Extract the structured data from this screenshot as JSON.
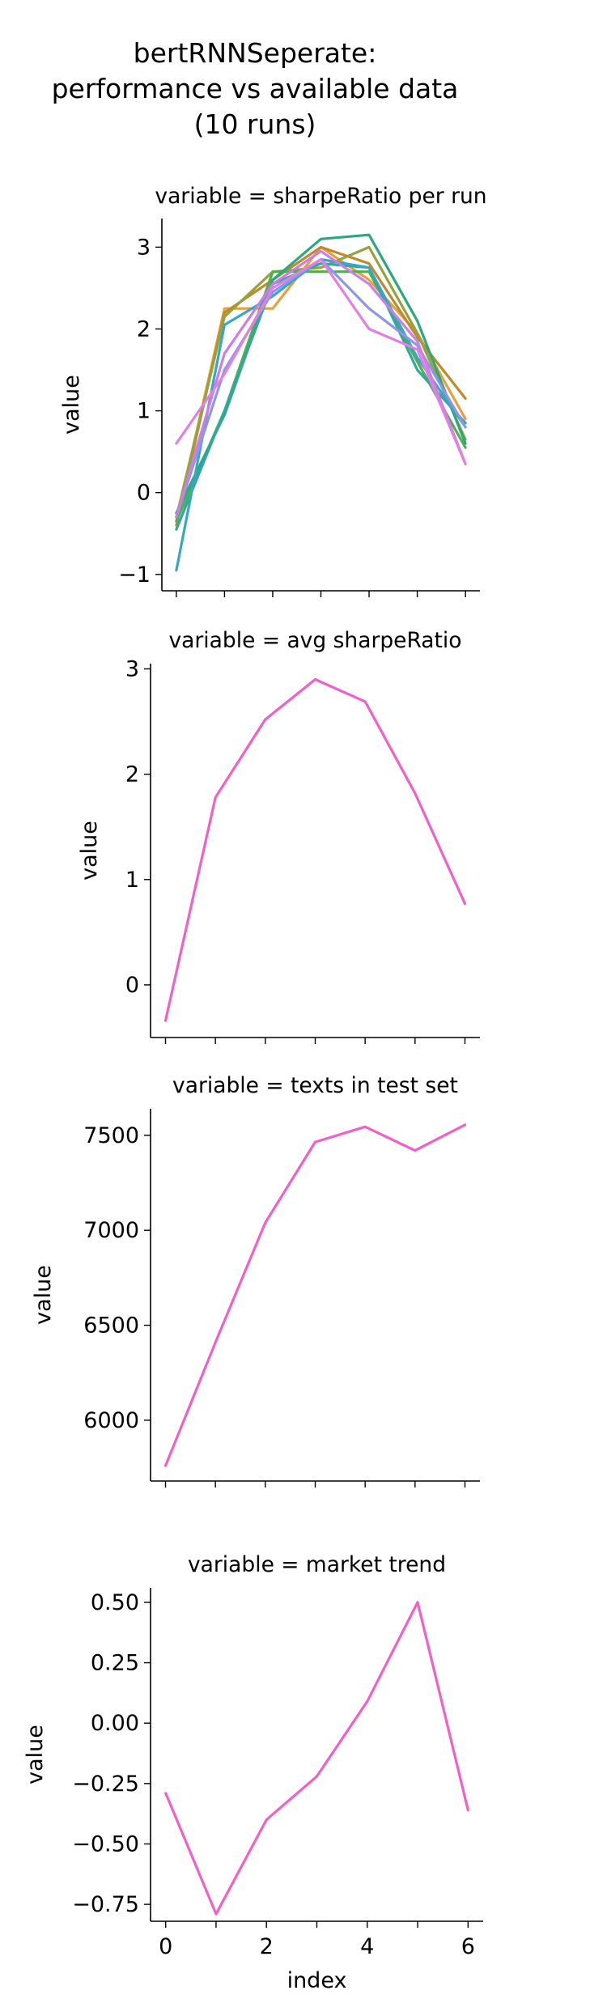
{
  "figure_title": [
    "bertRNNSeperate:",
    "performance vs available data",
    "(10 runs)"
  ],
  "chart_data": [
    {
      "type": "line",
      "title": "variable = sharpeRatio per run",
      "xlabel": "",
      "ylabel": "value",
      "x": [
        0,
        1,
        2,
        3,
        4,
        5,
        6
      ],
      "xlim": [
        -0.3,
        6.3
      ],
      "ylim": [
        -1.2,
        3.35
      ],
      "yticks": [
        -1,
        0,
        1,
        2,
        3
      ],
      "grid": false,
      "series": [
        {
          "color": "#e8a13a",
          "values": [
            -0.35,
            2.25,
            2.25,
            3.0,
            2.6,
            1.95,
            0.9
          ]
        },
        {
          "color": "#c08a2c",
          "values": [
            -0.4,
            2.2,
            2.6,
            3.0,
            2.8,
            1.9,
            1.15
          ]
        },
        {
          "color": "#97a23a",
          "values": [
            -0.3,
            2.15,
            2.7,
            2.75,
            3.0,
            1.95,
            0.65
          ]
        },
        {
          "color": "#52b049",
          "values": [
            -0.35,
            1.0,
            2.7,
            2.7,
            2.7,
            1.6,
            0.55
          ]
        },
        {
          "color": "#2aa880",
          "values": [
            -0.25,
            0.95,
            2.6,
            3.1,
            3.15,
            2.1,
            0.6
          ]
        },
        {
          "color": "#30a8a0",
          "values": [
            -0.45,
            1.0,
            2.55,
            2.8,
            2.75,
            1.5,
            0.85
          ]
        },
        {
          "color": "#38a6c6",
          "values": [
            -0.95,
            2.05,
            2.4,
            2.85,
            2.75,
            1.65,
            0.8
          ]
        },
        {
          "color": "#8d96e8",
          "values": [
            -0.3,
            1.5,
            2.45,
            2.85,
            2.25,
            1.8,
            0.8
          ]
        },
        {
          "color": "#cc7ee6",
          "values": [
            -0.3,
            1.7,
            2.55,
            2.95,
            2.55,
            1.85,
            0.35
          ]
        },
        {
          "color": "#e37fe2",
          "values": [
            0.6,
            1.45,
            2.5,
            2.85,
            2.0,
            1.75,
            0.35
          ]
        }
      ]
    },
    {
      "type": "line",
      "title": "variable = avg sharpeRatio",
      "xlabel": "",
      "ylabel": "value",
      "x": [
        0,
        1,
        2,
        3,
        4,
        5,
        6
      ],
      "xlim": [
        -0.3,
        6.3
      ],
      "ylim": [
        -0.5,
        3.05
      ],
      "yticks": [
        0,
        1,
        2,
        3
      ],
      "grid": false,
      "series": [
        {
          "color": "#f060c8",
          "values": [
            -0.34,
            1.78,
            2.52,
            2.9,
            2.69,
            1.82,
            0.77
          ]
        }
      ]
    },
    {
      "type": "line",
      "title": "variable = texts in test set",
      "xlabel": "",
      "ylabel": "value",
      "x": [
        0,
        1,
        2,
        3,
        4,
        5,
        6
      ],
      "xlim": [
        -0.3,
        6.3
      ],
      "ylim": [
        5680,
        7640
      ],
      "yticks": [
        6000,
        6500,
        7000,
        7500
      ],
      "grid": false,
      "series": [
        {
          "color": "#f060c8",
          "values": [
            5760,
            6410,
            7040,
            7465,
            7545,
            7420,
            7555
          ]
        }
      ]
    },
    {
      "type": "line",
      "title": "variable = market trend",
      "xlabel": "index",
      "ylabel": "value",
      "x": [
        0,
        1,
        2,
        3,
        4,
        5,
        6
      ],
      "xlim": [
        -0.3,
        6.3
      ],
      "xticks": [
        0,
        2,
        4,
        6
      ],
      "ylim": [
        -0.82,
        0.56
      ],
      "yticks": [
        -0.75,
        -0.5,
        -0.25,
        0.0,
        0.25,
        0.5
      ],
      "ytick_labels": [
        "−0.75",
        "−0.50",
        "−0.25",
        "0.00",
        "0.25",
        "0.50"
      ],
      "grid": false,
      "series": [
        {
          "color": "#f060c8",
          "values": [
            -0.29,
            -0.79,
            -0.4,
            -0.22,
            0.09,
            0.5,
            -0.36
          ]
        }
      ]
    }
  ]
}
